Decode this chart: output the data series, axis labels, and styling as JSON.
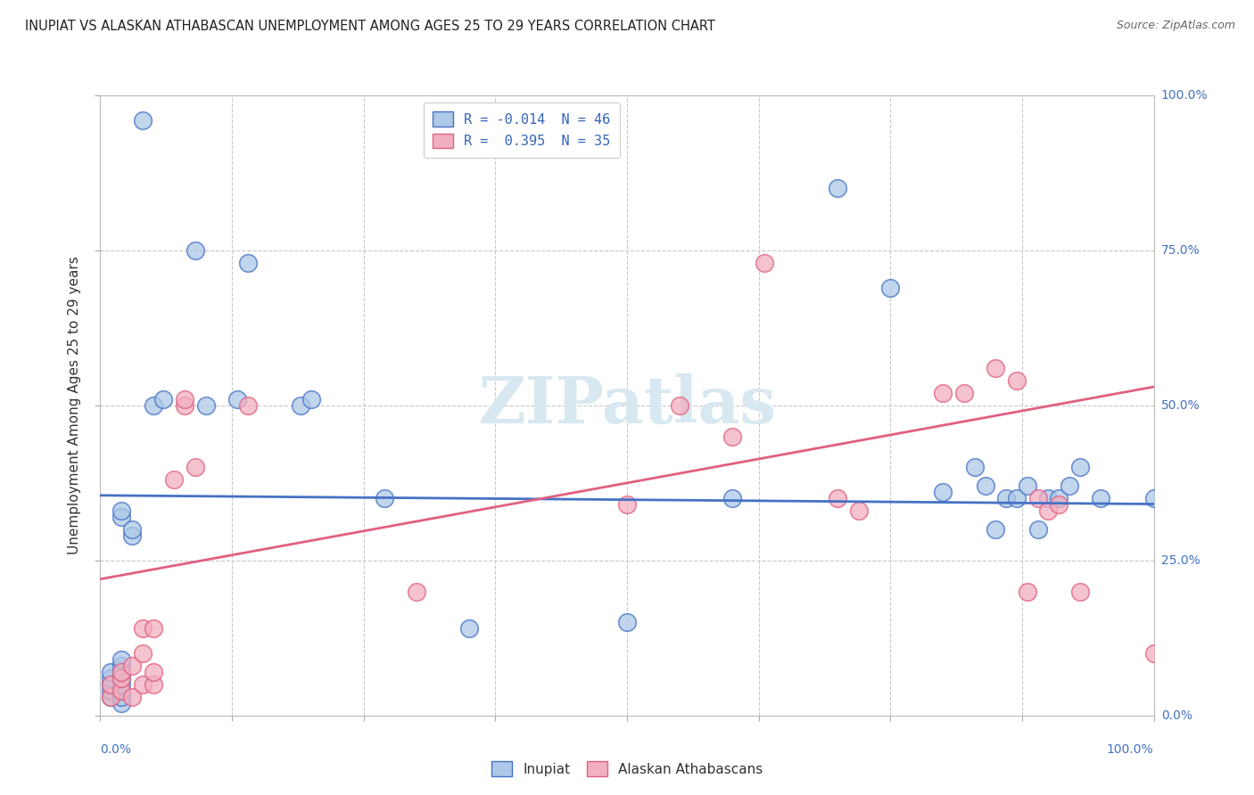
{
  "title": "INUPIAT VS ALASKAN ATHABASCAN UNEMPLOYMENT AMONG AGES 25 TO 29 YEARS CORRELATION CHART",
  "source": "Source: ZipAtlas.com",
  "ylabel": "Unemployment Among Ages 25 to 29 years",
  "legend1_r": "-0.014",
  "legend1_n": "46",
  "legend2_r": "0.395",
  "legend2_n": "35",
  "legend_bottom1": "Inupiat",
  "legend_bottom2": "Alaskan Athabascans",
  "inupiat_color": "#adc8e8",
  "athabascan_color": "#f2afc0",
  "inupiat_line_color": "#4472c4",
  "athabascan_line_color": "#e06080",
  "watermark_color": "#d8e8f0",
  "inupiat_x": [
    0.01,
    0.01,
    0.01,
    0.01,
    0.01,
    0.02,
    0.02,
    0.02,
    0.02,
    0.02,
    0.02,
    0.02,
    0.02,
    0.02,
    0.02,
    0.03,
    0.03,
    0.04,
    0.05,
    0.06,
    0.09,
    0.1,
    0.13,
    0.14,
    0.19,
    0.2,
    0.27,
    0.35,
    0.5,
    0.6,
    0.7,
    0.75,
    0.8,
    0.83,
    0.84,
    0.85,
    0.86,
    0.87,
    0.88,
    0.89,
    0.9,
    0.91,
    0.92,
    0.93,
    0.95,
    1.0
  ],
  "inupiat_y": [
    0.03,
    0.04,
    0.05,
    0.06,
    0.07,
    0.02,
    0.03,
    0.04,
    0.05,
    0.06,
    0.07,
    0.08,
    0.09,
    0.32,
    0.33,
    0.29,
    0.3,
    0.96,
    0.5,
    0.51,
    0.75,
    0.5,
    0.51,
    0.73,
    0.5,
    0.51,
    0.35,
    0.14,
    0.15,
    0.35,
    0.85,
    0.69,
    0.36,
    0.4,
    0.37,
    0.3,
    0.35,
    0.35,
    0.37,
    0.3,
    0.35,
    0.35,
    0.37,
    0.4,
    0.35,
    0.35
  ],
  "athabascan_x": [
    0.01,
    0.01,
    0.02,
    0.02,
    0.02,
    0.03,
    0.03,
    0.04,
    0.04,
    0.04,
    0.05,
    0.05,
    0.05,
    0.07,
    0.08,
    0.08,
    0.09,
    0.14,
    0.3,
    0.5,
    0.55,
    0.6,
    0.63,
    0.7,
    0.72,
    0.8,
    0.82,
    0.85,
    0.87,
    0.88,
    0.89,
    0.9,
    0.91,
    0.93,
    1.0
  ],
  "athabascan_y": [
    0.03,
    0.05,
    0.04,
    0.06,
    0.07,
    0.03,
    0.08,
    0.05,
    0.1,
    0.14,
    0.05,
    0.07,
    0.14,
    0.38,
    0.5,
    0.51,
    0.4,
    0.5,
    0.2,
    0.34,
    0.5,
    0.45,
    0.73,
    0.35,
    0.33,
    0.52,
    0.52,
    0.56,
    0.54,
    0.2,
    0.35,
    0.33,
    0.34,
    0.2,
    0.1
  ],
  "inupiat_trend": [
    -0.014,
    0.355
  ],
  "athabascan_trend": [
    0.31,
    0.22
  ],
  "xlim": [
    0.0,
    1.0
  ],
  "ylim": [
    0.0,
    1.0
  ],
  "yticks": [
    0.0,
    0.25,
    0.5,
    0.75,
    1.0
  ],
  "ytick_labels": [
    "0.0%",
    "25.0%",
    "50.0%",
    "75.0%",
    "100.0%"
  ],
  "xtick_labels_show": [
    "0.0%",
    "100.0%"
  ]
}
